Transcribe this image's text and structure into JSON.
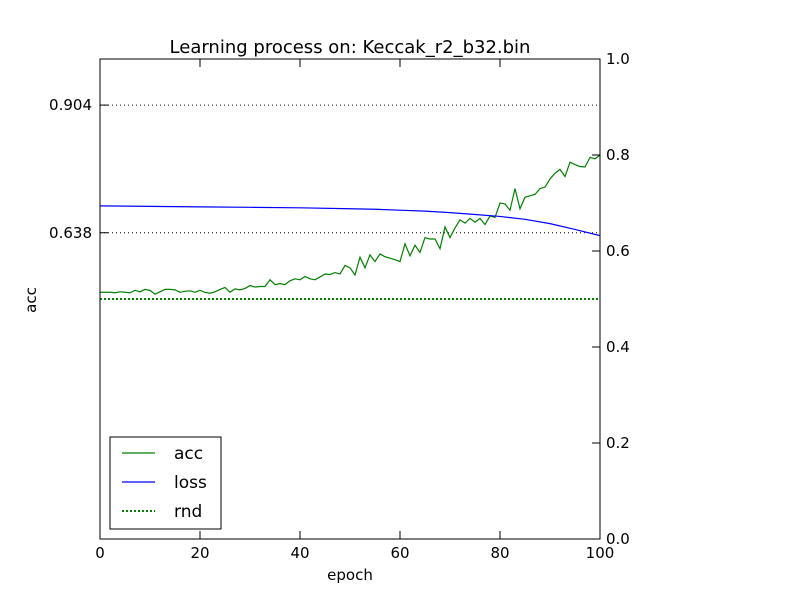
{
  "chart_data": {
    "type": "line",
    "title": "Learning process on: Keccak_r2_b32.bin",
    "xlabel": "epoch",
    "ylabel": "acc",
    "xlim": [
      0,
      100
    ],
    "ylim_left": [
      0,
      1
    ],
    "ylim_right": [
      0.0,
      1.0
    ],
    "x_ticks": [
      0,
      20,
      40,
      60,
      80,
      100
    ],
    "left_ticks": [
      0.638,
      0.904
    ],
    "left_tick_labels": [
      "0.638",
      "0.904"
    ],
    "right_ticks": [
      0.0,
      0.2,
      0.4,
      0.6,
      0.8,
      1.0
    ],
    "right_tick_labels": [
      "0.0",
      "0.2",
      "0.4",
      "0.6",
      "0.8",
      "1.0"
    ],
    "hlines": [
      0.904,
      0.638
    ],
    "legend_position": "lower-left",
    "series": [
      {
        "name": "acc",
        "color": "#008000",
        "style": "solid",
        "axis": "left",
        "x": [
          0,
          1,
          2,
          3,
          4,
          5,
          6,
          7,
          8,
          9,
          10,
          11,
          12,
          13,
          14,
          15,
          16,
          17,
          18,
          19,
          20,
          21,
          22,
          23,
          24,
          25,
          26,
          27,
          28,
          29,
          30,
          31,
          32,
          33,
          34,
          35,
          36,
          37,
          38,
          39,
          40,
          41,
          42,
          43,
          44,
          45,
          46,
          47,
          48,
          49,
          50,
          51,
          52,
          53,
          54,
          55,
          56,
          57,
          58,
          59,
          60,
          61,
          62,
          63,
          64,
          65,
          66,
          67,
          68,
          69,
          70,
          71,
          72,
          73,
          74,
          75,
          76,
          77,
          78,
          79,
          80,
          81,
          82,
          83,
          84,
          85,
          86,
          87,
          88,
          89,
          90,
          91,
          92,
          93,
          94,
          95,
          96,
          97,
          98,
          99,
          100
        ],
        "y": [
          0.514,
          0.514,
          0.514,
          0.513,
          0.515,
          0.514,
          0.513,
          0.518,
          0.515,
          0.52,
          0.518,
          0.51,
          0.515,
          0.52,
          0.52,
          0.519,
          0.514,
          0.516,
          0.517,
          0.514,
          0.518,
          0.514,
          0.512,
          0.515,
          0.52,
          0.524,
          0.514,
          0.521,
          0.519,
          0.522,
          0.528,
          0.525,
          0.526,
          0.526,
          0.54,
          0.53,
          0.532,
          0.53,
          0.538,
          0.542,
          0.54,
          0.547,
          0.542,
          0.54,
          0.546,
          0.552,
          0.551,
          0.555,
          0.552,
          0.57,
          0.565,
          0.55,
          0.587,
          0.565,
          0.592,
          0.578,
          0.594,
          0.588,
          0.585,
          0.582,
          0.578,
          0.615,
          0.59,
          0.612,
          0.597,
          0.628,
          0.625,
          0.625,
          0.605,
          0.65,
          0.628,
          0.648,
          0.665,
          0.658,
          0.668,
          0.66,
          0.668,
          0.655,
          0.673,
          0.67,
          0.7,
          0.698,
          0.685,
          0.73,
          0.688,
          0.712,
          0.715,
          0.718,
          0.73,
          0.733,
          0.75,
          0.762,
          0.77,
          0.755,
          0.785,
          0.78,
          0.776,
          0.775,
          0.795,
          0.792,
          0.8
        ]
      },
      {
        "name": "loss",
        "color": "#0000ff",
        "style": "solid",
        "axis": "right",
        "x": [
          0,
          10,
          20,
          30,
          40,
          50,
          55,
          60,
          65,
          70,
          75,
          80,
          85,
          90,
          95,
          100
        ],
        "y": [
          0.694,
          0.693,
          0.692,
          0.691,
          0.69,
          0.688,
          0.687,
          0.685,
          0.683,
          0.68,
          0.676,
          0.672,
          0.666,
          0.657,
          0.645,
          0.632
        ]
      },
      {
        "name": "rnd",
        "color": "#008000",
        "style": "dotted",
        "axis": "left",
        "x": [
          0,
          100
        ],
        "y": [
          0.5,
          0.5
        ]
      }
    ]
  }
}
